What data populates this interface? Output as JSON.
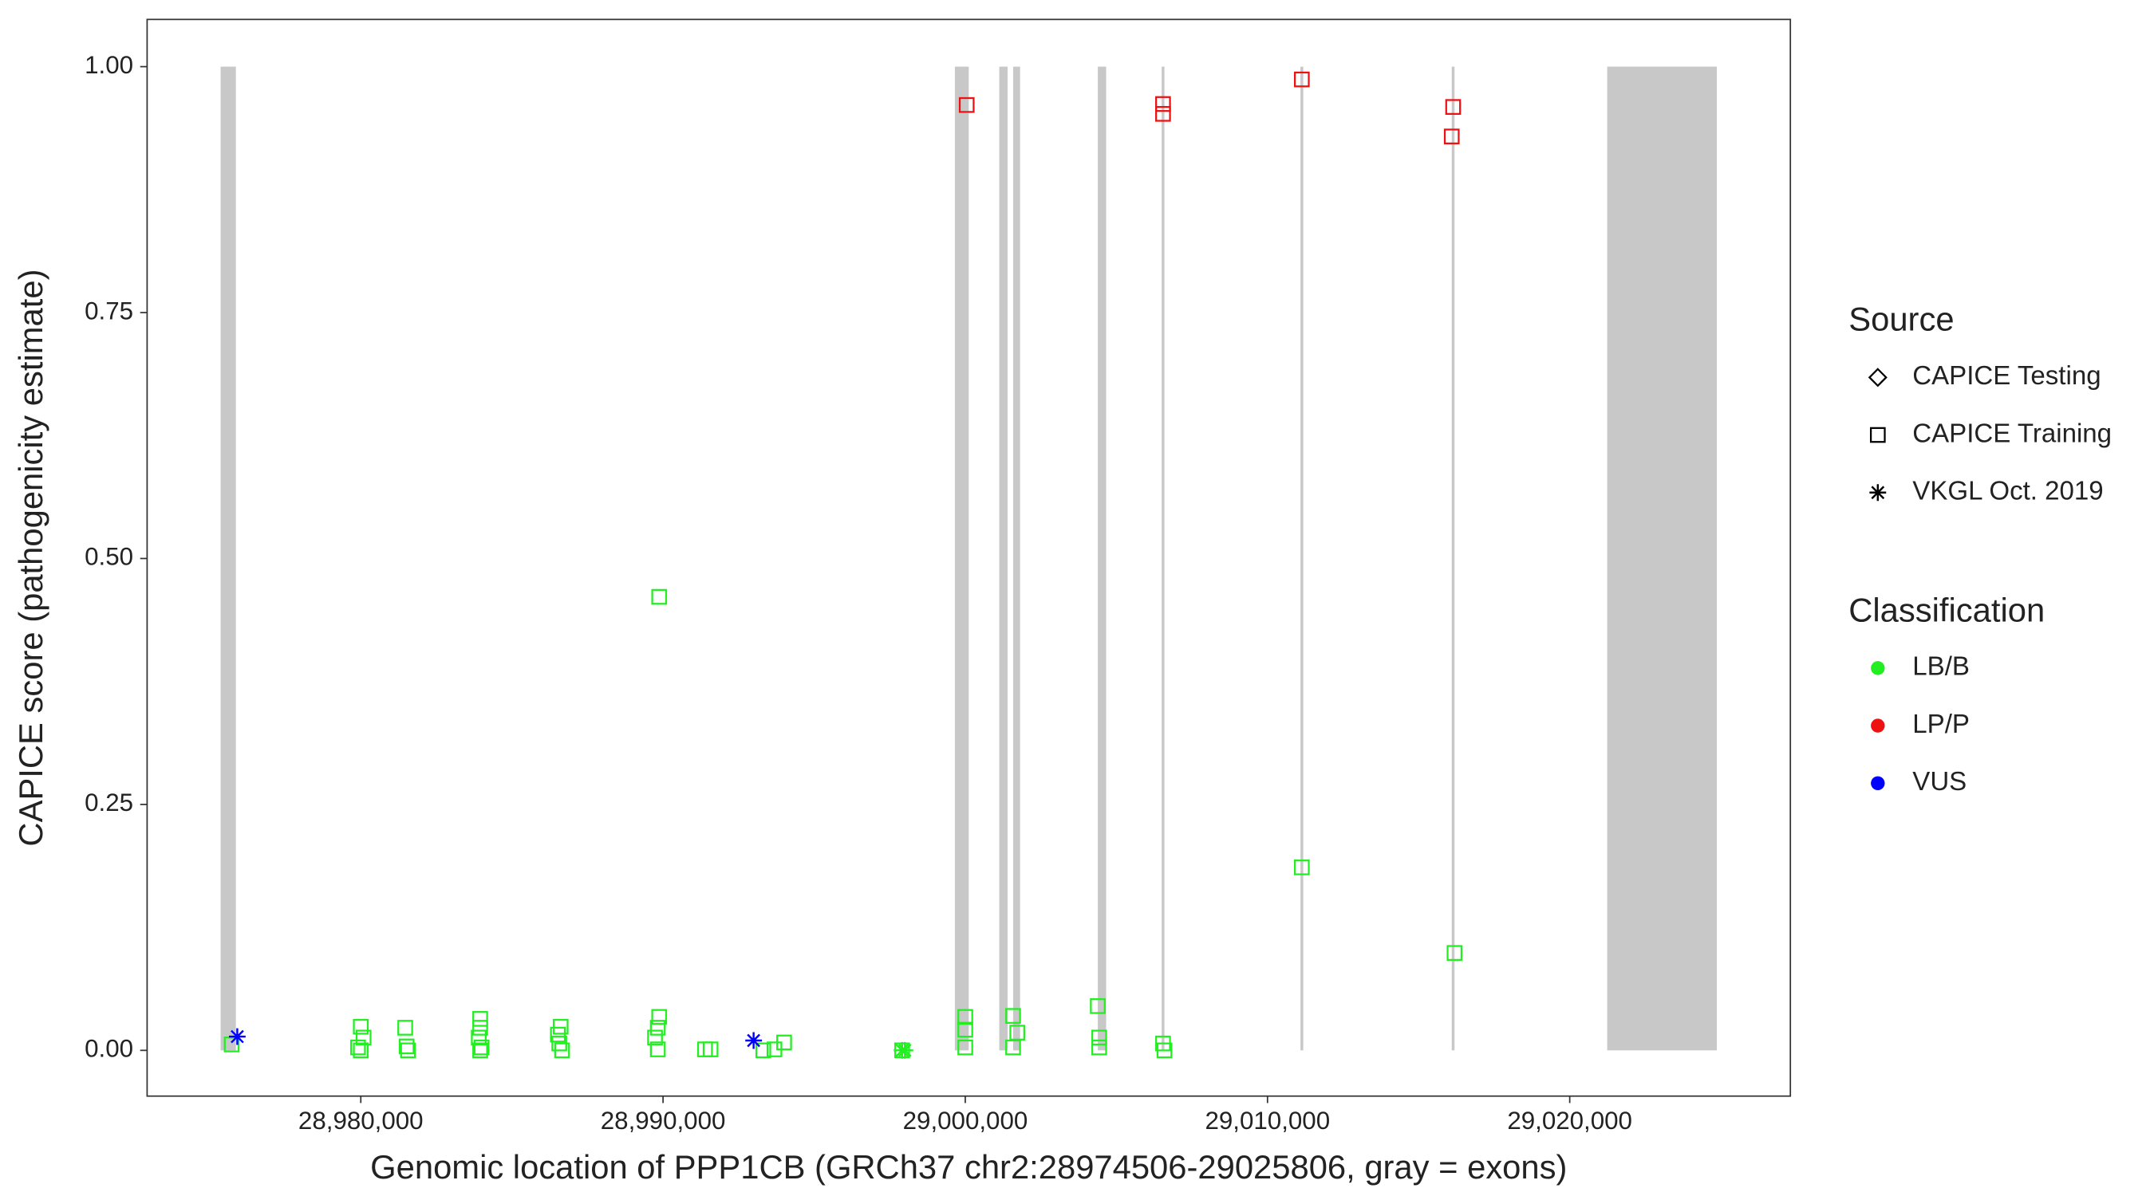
{
  "chart_data": {
    "type": "scatter",
    "xlabel": "Genomic location of PPP1CB (GRCh37 chr2:28974506-29025806, gray = exons)",
    "ylabel": "CAPICE score (pathogenicity estimate)",
    "xlim": [
      28972930,
      29027300
    ],
    "ylim": [
      -0.0465,
      1.048
    ],
    "xticks": [
      {
        "value": 28980000,
        "label": "28,980,000"
      },
      {
        "value": 28990000,
        "label": "28,990,000"
      },
      {
        "value": 29000000,
        "label": "29,000,000"
      },
      {
        "value": 29010000,
        "label": "29,010,000"
      },
      {
        "value": 29020000,
        "label": "29,020,000"
      }
    ],
    "yticks": [
      {
        "value": 0,
        "label": "0.00"
      },
      {
        "value": 0.25,
        "label": "0.25"
      },
      {
        "value": 0.5,
        "label": "0.50"
      },
      {
        "value": 0.75,
        "label": "0.75"
      },
      {
        "value": 1,
        "label": "1.00"
      }
    ],
    "grid": false,
    "exon_color": "#c8c8c8",
    "exon_span": [
      0,
      1
    ],
    "exons": [
      [
        28975362,
        28975867
      ],
      [
        28999656,
        29000115
      ],
      [
        29001125,
        29001400
      ],
      [
        29001584,
        29001814
      ],
      [
        29004385,
        29004661
      ],
      [
        29006498,
        29006590
      ],
      [
        29011091,
        29011183
      ],
      [
        29016096,
        29016188
      ],
      [
        29021240,
        29024867
      ]
    ],
    "legends": [
      {
        "title": "Source",
        "items": [
          {
            "name": "CAPICE Testing",
            "shape": "diamond"
          },
          {
            "name": "CAPICE Training",
            "shape": "square"
          },
          {
            "name": "VKGL Oct. 2019",
            "shape": "star"
          }
        ]
      },
      {
        "title": "Classification",
        "items": [
          {
            "name": "LB/B",
            "color": "#22ee22"
          },
          {
            "name": "LP/P",
            "color": "#ee1111"
          },
          {
            "name": "VUS",
            "color": "#0000ff"
          }
        ]
      }
    ],
    "series": [
      {
        "source": 1,
        "classification": 0,
        "x": [
          28975729,
          28980000,
          28980000,
          28980092,
          28979908,
          28981470,
          28981516,
          28981562,
          28983950,
          28983950,
          28983904,
          28983996,
          28983950,
          28986613,
          28986521,
          28986567,
          28986659,
          28989873,
          28989873,
          28989827,
          28989735,
          28989827,
          28991389,
          28991573,
          28993318,
          28993686,
          28994006,
          28997910,
          29000001,
          29000001,
          29000001,
          29001583,
          29001721,
          29001583,
          29004385,
          29004431,
          29004431,
          29006544,
          29006590,
          29011136,
          29016188
        ],
        "values": [
          0.006,
          0.024,
          0,
          0.013,
          0.003,
          0.023,
          0.004,
          0,
          0.032,
          0.023,
          0.013,
          0.003,
          0,
          0.024,
          0.016,
          0.007,
          0,
          0.461,
          0.034,
          0.023,
          0.013,
          0.001,
          0.001,
          0.001,
          0,
          0.001,
          0.008,
          0,
          0.034,
          0.021,
          0.003,
          0.035,
          0.018,
          0.003,
          0.045,
          0.013,
          0.003,
          0.007,
          0,
          0.186,
          0.099
        ]
      },
      {
        "source": 1,
        "classification": 1,
        "x": [
          29000047,
          29006544,
          29006544,
          29011136,
          29016142,
          29016096
        ],
        "values": [
          0.961,
          0.962,
          0.952,
          0.987,
          0.959,
          0.929
        ]
      },
      {
        "source": 2,
        "classification": 0,
        "x": [
          28997910,
          28998002
        ],
        "values": [
          0,
          0
        ]
      },
      {
        "source": 2,
        "classification": 2,
        "x": [
          28975913,
          28992997
        ],
        "values": [
          0.014,
          0.01
        ]
      }
    ]
  }
}
